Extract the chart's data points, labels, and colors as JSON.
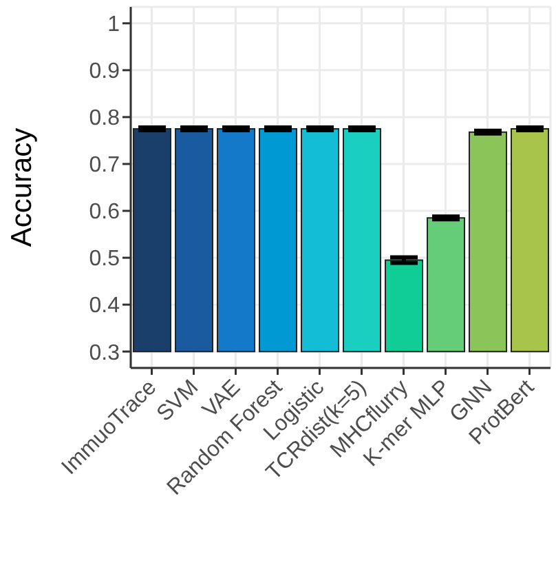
{
  "chart_data": {
    "type": "bar",
    "ylabel": "Accuracy",
    "categories": [
      "ImmuoTrace",
      "SVM",
      "VAE",
      "Random Forest",
      "Logistic",
      "TCRdist(k=5)",
      "MHCflurry",
      "K-mer MLP",
      "GNN",
      "ProtBert"
    ],
    "base": [
      0.3,
      0.3,
      0.3,
      0.3,
      0.3,
      0.3,
      0.3,
      0.3,
      0.3,
      0.3
    ],
    "values": [
      0.475,
      0.475,
      0.475,
      0.475,
      0.475,
      0.475,
      0.195,
      0.285,
      0.468,
      0.475
    ],
    "errors": [
      0.003,
      0.003,
      0.003,
      0.003,
      0.003,
      0.003,
      0.006,
      0.003,
      0.003,
      0.003
    ],
    "colors": [
      "#1a3f6b",
      "#1a5b9f",
      "#1379c8",
      "#0099d4",
      "#13bdd6",
      "#1bcfc0",
      "#10cd96",
      "#65cc78",
      "#8bc55a",
      "#a8c44a"
    ],
    "ylim": [
      0.265,
      1.035
    ],
    "yticks": [
      0.3,
      0.4,
      0.5,
      0.6,
      0.7,
      0.8,
      0.9,
      1
    ],
    "grid": true
  }
}
